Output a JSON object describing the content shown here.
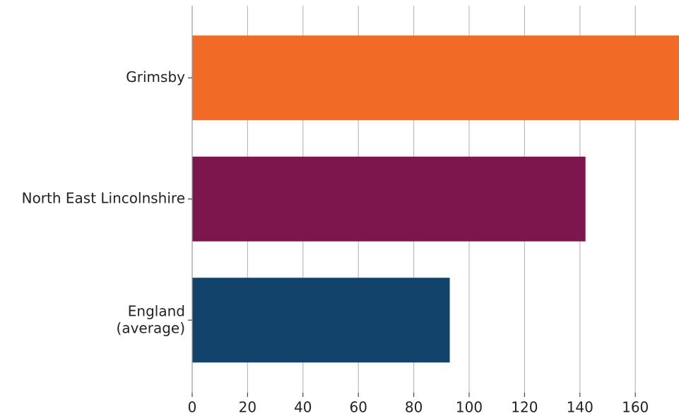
{
  "chart_data": {
    "type": "barh",
    "categories": [
      "Grimsby",
      "North East Lincolnshire",
      "England\n(average)"
    ],
    "values": [
      180,
      142,
      93
    ],
    "colors": [
      "#f26b26",
      "#7d164d",
      "#12436b"
    ],
    "xlim": [
      0,
      176
    ],
    "xticks": [
      0,
      20,
      40,
      60,
      80,
      100,
      120,
      140,
      160
    ],
    "grid": true
  }
}
